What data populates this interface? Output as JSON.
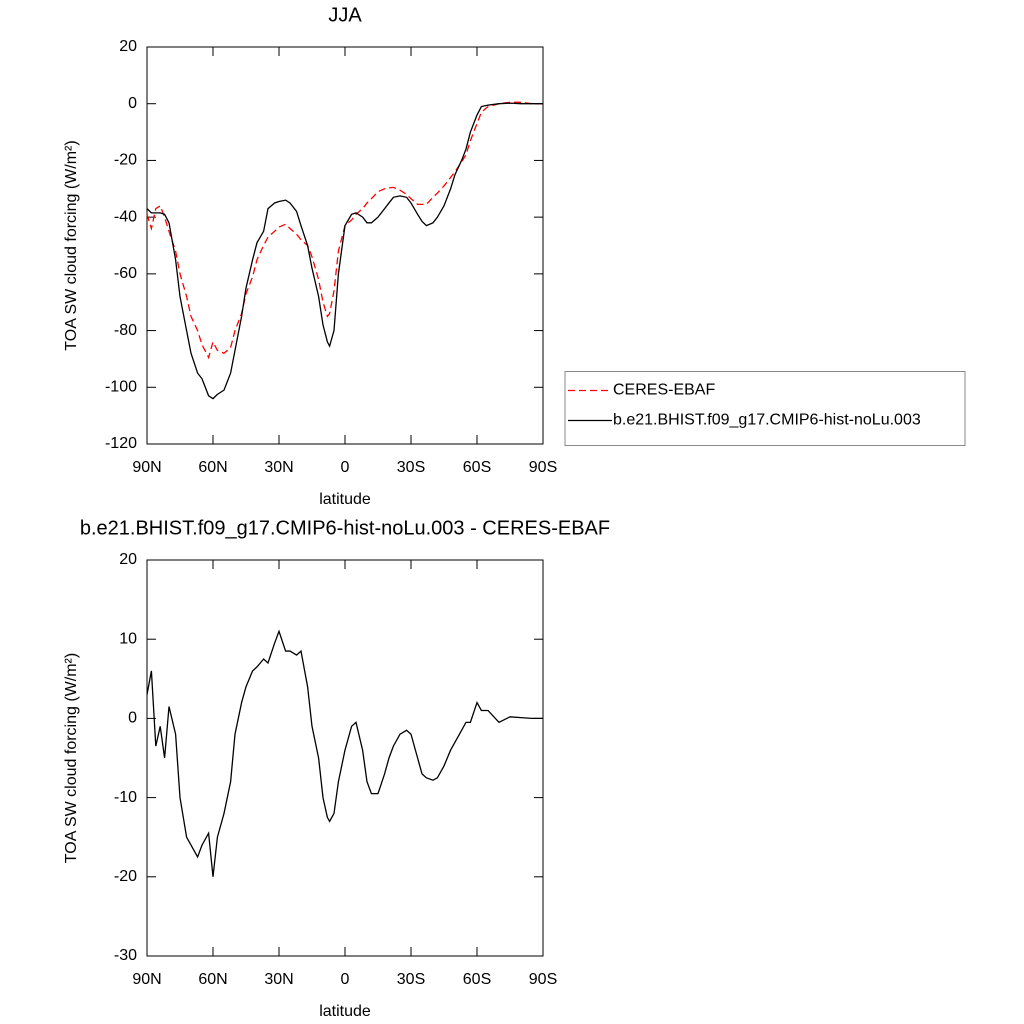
{
  "chart_data": [
    {
      "type": "line",
      "title": "JJA",
      "xlabel": "latitude",
      "ylabel": "TOA SW cloud forcing (W/m²)",
      "x": [
        90,
        88,
        86,
        84,
        82,
        80,
        77,
        75,
        72,
        70,
        67,
        65,
        62,
        60,
        58,
        55,
        52,
        50,
        47,
        45,
        42,
        40,
        37,
        35,
        32,
        30,
        27,
        25,
        22,
        20,
        17,
        15,
        12,
        10,
        8,
        7,
        5,
        3,
        0,
        -3,
        -5,
        -8,
        -10,
        -12,
        -15,
        -18,
        -20,
        -22,
        -25,
        -28,
        -30,
        -33,
        -35,
        -37,
        -40,
        -42,
        -45,
        -48,
        -50,
        -53,
        -55,
        -57,
        -60,
        -62,
        -65,
        -70,
        -75,
        -80,
        -85,
        -90
      ],
      "series": [
        {
          "name": "CERES-EBAF",
          "color": "#ff0000",
          "linestyle": "dashed",
          "values": [
            -39,
            -44,
            -37,
            -36,
            -40,
            -45,
            -52,
            -60,
            -68,
            -75,
            -80,
            -85,
            -89.5,
            -84,
            -87,
            -88,
            -86,
            -80,
            -74,
            -67,
            -61,
            -55,
            -50,
            -47,
            -45,
            -43.5,
            -42.5,
            -44,
            -46,
            -48,
            -50,
            -54,
            -62,
            -70,
            -75,
            -74,
            -66,
            -52,
            -43,
            -41,
            -39,
            -37,
            -35,
            -33.5,
            -31,
            -30,
            -29.7,
            -29.5,
            -30.5,
            -32,
            -33.5,
            -35.5,
            -35.5,
            -35.5,
            -33,
            -31.5,
            -29,
            -26,
            -24,
            -20.5,
            -18,
            -13,
            -7,
            -3,
            -1,
            0,
            0.5,
            0.5,
            0,
            0
          ]
        },
        {
          "name": "b.e21.BHIST.f09_g17.CMIP6-hist-noLu.003",
          "color": "#000000",
          "linestyle": "solid",
          "values": [
            -37,
            -38.5,
            -38.5,
            -38.5,
            -39,
            -42,
            -55,
            -68,
            -80,
            -88,
            -95,
            -97,
            -103,
            -104,
            -102.5,
            -101,
            -95,
            -87,
            -75,
            -65,
            -55,
            -49,
            -45,
            -37,
            -35,
            -34.5,
            -34,
            -35,
            -38,
            -43,
            -50,
            -58,
            -68,
            -78,
            -84,
            -85.5,
            -80,
            -60,
            -43,
            -39,
            -38.5,
            -40,
            -42,
            -42,
            -40,
            -37,
            -35,
            -33,
            -32.5,
            -33,
            -35,
            -39,
            -41.5,
            -43,
            -42,
            -40,
            -36,
            -30,
            -25,
            -20,
            -16,
            -10,
            -4,
            -1,
            -0.5,
            0,
            0.2,
            0,
            0,
            0
          ]
        }
      ],
      "xlim": [
        90,
        -90
      ],
      "xticks": [
        {
          "value": 90,
          "label": "90N"
        },
        {
          "value": 60,
          "label": "60N"
        },
        {
          "value": 30,
          "label": "30N"
        },
        0,
        {
          "value": -30,
          "label": "30S"
        },
        {
          "value": -60,
          "label": "60S"
        },
        {
          "value": -90,
          "label": "90S"
        }
      ],
      "ylim": [
        -120,
        20
      ],
      "yticks": [
        -120,
        -100,
        -80,
        -60,
        -40,
        -20,
        0,
        20
      ],
      "grid": false,
      "legend": "right"
    },
    {
      "type": "line",
      "title": "b.e21.BHIST.f09_g17.CMIP6-hist-noLu.003 - CERES-EBAF",
      "xlabel": "latitude",
      "ylabel": "TOA SW cloud forcing (W/m²)",
      "x": [
        90,
        88,
        86,
        84,
        82,
        80,
        77,
        75,
        72,
        70,
        67,
        65,
        62,
        60,
        58,
        55,
        52,
        50,
        47,
        45,
        42,
        40,
        37,
        35,
        32,
        30,
        27,
        25,
        22,
        20,
        17,
        15,
        12,
        10,
        8,
        7,
        5,
        3,
        0,
        -3,
        -5,
        -8,
        -10,
        -12,
        -15,
        -18,
        -20,
        -22,
        -25,
        -28,
        -30,
        -33,
        -35,
        -37,
        -40,
        -42,
        -45,
        -48,
        -50,
        -53,
        -55,
        -57,
        -60,
        -62,
        -65,
        -70,
        -75,
        -80,
        -85,
        -90
      ],
      "values": [
        3,
        6,
        -3.5,
        -1,
        -5,
        1.5,
        -2,
        -10,
        -15,
        -16,
        -17.5,
        -16,
        -14.5,
        -20,
        -15,
        -12,
        -8,
        -2,
        2,
        4,
        6,
        6.5,
        7.5,
        7,
        9.5,
        11,
        8.5,
        8.5,
        8,
        8.5,
        4,
        -1,
        -5,
        -10,
        -12.5,
        -13,
        -12,
        -8,
        -4,
        -1,
        -0.5,
        -4,
        -8,
        -9.5,
        -9.5,
        -7,
        -5,
        -3.5,
        -2,
        -1.5,
        -2,
        -5,
        -7,
        -7.5,
        -7.8,
        -7.5,
        -6,
        -4,
        -3,
        -1.5,
        -0.5,
        -0.5,
        2,
        1,
        1,
        -0.5,
        0.2,
        0.1,
        0,
        0
      ],
      "color": "#000000",
      "xlim": [
        90,
        -90
      ],
      "xticks": [
        {
          "value": 90,
          "label": "90N"
        },
        {
          "value": 60,
          "label": "60N"
        },
        {
          "value": 30,
          "label": "30N"
        },
        0,
        {
          "value": -30,
          "label": "30S"
        },
        {
          "value": -60,
          "label": "60S"
        },
        {
          "value": -90,
          "label": "90S"
        }
      ],
      "ylim": [
        -30,
        20
      ],
      "yticks": [
        -30,
        -20,
        -10,
        0,
        10,
        20
      ],
      "grid": false
    }
  ]
}
